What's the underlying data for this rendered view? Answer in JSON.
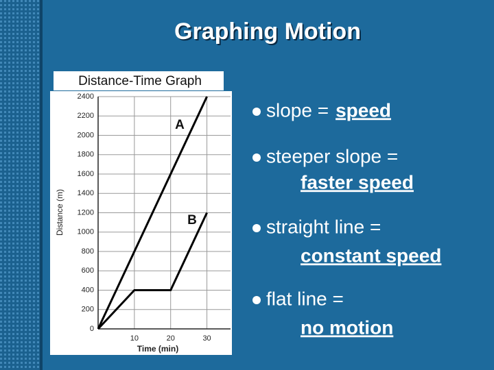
{
  "slide": {
    "title": "Graphing Motion",
    "bullets": [
      {
        "text": "slope =",
        "highlight": "speed"
      },
      {
        "text": "steeper slope =",
        "highlight": "faster speed"
      },
      {
        "text": "straight line =",
        "highlight": "constant speed"
      },
      {
        "text": "flat line =",
        "highlight": "no motion"
      }
    ]
  },
  "chart_data": {
    "type": "line",
    "title": "Distance-Time Graph",
    "x_label": "Time (min)",
    "y_label": "Distance (m)",
    "series": [
      {
        "name": "A",
        "color": "#000000",
        "x": [
          0,
          30
        ],
        "values": [
          0,
          2400
        ]
      },
      {
        "name": "B",
        "color": "#000000",
        "x": [
          0,
          10,
          20,
          30
        ],
        "values": [
          0,
          400,
          400,
          1200
        ]
      }
    ],
    "xlim": [
      0,
      35
    ],
    "xticks": [
      10,
      20,
      30
    ],
    "ylim": [
      0,
      2400
    ],
    "yticks": [
      0,
      200,
      400,
      600,
      800,
      1000,
      1200,
      1400,
      1600,
      1800,
      2000,
      2200,
      2400
    ],
    "grid": true
  }
}
